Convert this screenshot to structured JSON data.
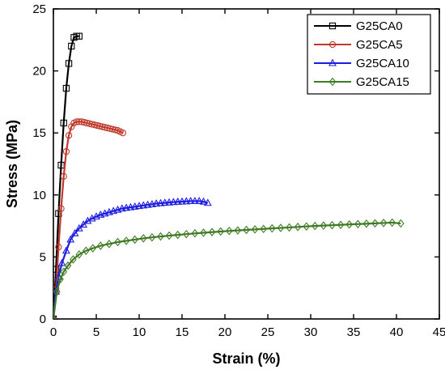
{
  "chart_data": {
    "type": "line",
    "xlabel": "Strain (%)",
    "ylabel": "Stress (MPa)",
    "xlim": [
      0,
      45
    ],
    "ylim": [
      0,
      25
    ],
    "xticks": [
      0,
      5,
      10,
      15,
      20,
      25,
      30,
      35,
      40,
      45
    ],
    "yticks": [
      0,
      5,
      10,
      15,
      20,
      25
    ],
    "grid": false,
    "legend": "top-right",
    "series": [
      {
        "name": "G25CA0",
        "color": "#000000",
        "marker": "square",
        "x": [
          0,
          0.3,
          0.6,
          0.9,
          1.2,
          1.5,
          1.8,
          2.1,
          2.4,
          2.7,
          3.0
        ],
        "y": [
          0,
          4.0,
          8.5,
          12.4,
          15.8,
          18.6,
          20.6,
          22.0,
          22.7,
          22.8,
          22.8
        ]
      },
      {
        "name": "G25CA5",
        "color": "#c0392b",
        "marker": "circle",
        "x": [
          0,
          0.3,
          0.6,
          0.9,
          1.2,
          1.5,
          1.8,
          2.1,
          2.4,
          2.7,
          3.0,
          3.3,
          3.6,
          3.9,
          4.2,
          4.5,
          4.8,
          5.1,
          5.4,
          5.7,
          6.0,
          6.3,
          6.6,
          6.9,
          7.2,
          7.5,
          7.8,
          8.1
        ],
        "y": [
          0,
          2.4,
          5.8,
          8.9,
          11.5,
          13.5,
          14.8,
          15.5,
          15.8,
          15.9,
          15.9,
          15.9,
          15.85,
          15.8,
          15.75,
          15.7,
          15.65,
          15.6,
          15.55,
          15.5,
          15.45,
          15.4,
          15.35,
          15.3,
          15.25,
          15.2,
          15.1,
          15.0
        ]
      },
      {
        "name": "G25CA10",
        "color": "#1c1ce0",
        "marker": "triangle",
        "x": [
          0,
          0.3,
          0.6,
          1.0,
          1.5,
          2.0,
          2.5,
          3.0,
          3.5,
          4.0,
          4.5,
          5.0,
          5.5,
          6.0,
          6.5,
          7.0,
          7.5,
          8.0,
          8.5,
          9.0,
          9.5,
          10.0,
          10.5,
          11.0,
          11.5,
          12.0,
          12.5,
          13.0,
          13.5,
          14.0,
          14.5,
          15.0,
          15.5,
          16.0,
          16.5,
          17.0,
          17.5,
          18.0
        ],
        "y": [
          0,
          2.2,
          3.4,
          4.5,
          5.5,
          6.4,
          6.9,
          7.3,
          7.6,
          7.9,
          8.1,
          8.25,
          8.4,
          8.5,
          8.6,
          8.7,
          8.8,
          8.9,
          8.95,
          9.0,
          9.05,
          9.1,
          9.15,
          9.2,
          9.25,
          9.3,
          9.33,
          9.36,
          9.39,
          9.42,
          9.44,
          9.46,
          9.48,
          9.5,
          9.5,
          9.5,
          9.45,
          9.35
        ]
      },
      {
        "name": "G25CA15",
        "color": "#3f7b24",
        "marker": "diamond",
        "x": [
          0,
          0.4,
          0.8,
          1.2,
          1.7,
          2.3,
          3.0,
          3.8,
          4.6,
          5.5,
          6.5,
          7.5,
          8.5,
          9.5,
          10.5,
          11.5,
          12.5,
          13.5,
          14.5,
          15.5,
          16.5,
          17.5,
          18.5,
          19.5,
          20.5,
          21.5,
          22.5,
          23.5,
          24.5,
          25.5,
          26.5,
          27.5,
          28.5,
          29.5,
          30.5,
          31.5,
          32.5,
          33.5,
          34.5,
          35.5,
          36.5,
          37.5,
          38.5,
          39.5,
          40.5
        ],
        "y": [
          0,
          2.2,
          3.2,
          3.8,
          4.3,
          4.8,
          5.2,
          5.5,
          5.7,
          5.9,
          6.05,
          6.2,
          6.3,
          6.4,
          6.5,
          6.58,
          6.65,
          6.72,
          6.78,
          6.84,
          6.9,
          6.95,
          7.0,
          7.05,
          7.1,
          7.14,
          7.18,
          7.22,
          7.26,
          7.3,
          7.34,
          7.38,
          7.42,
          7.46,
          7.5,
          7.53,
          7.56,
          7.59,
          7.62,
          7.65,
          7.68,
          7.71,
          7.74,
          7.77,
          7.7
        ]
      }
    ]
  }
}
